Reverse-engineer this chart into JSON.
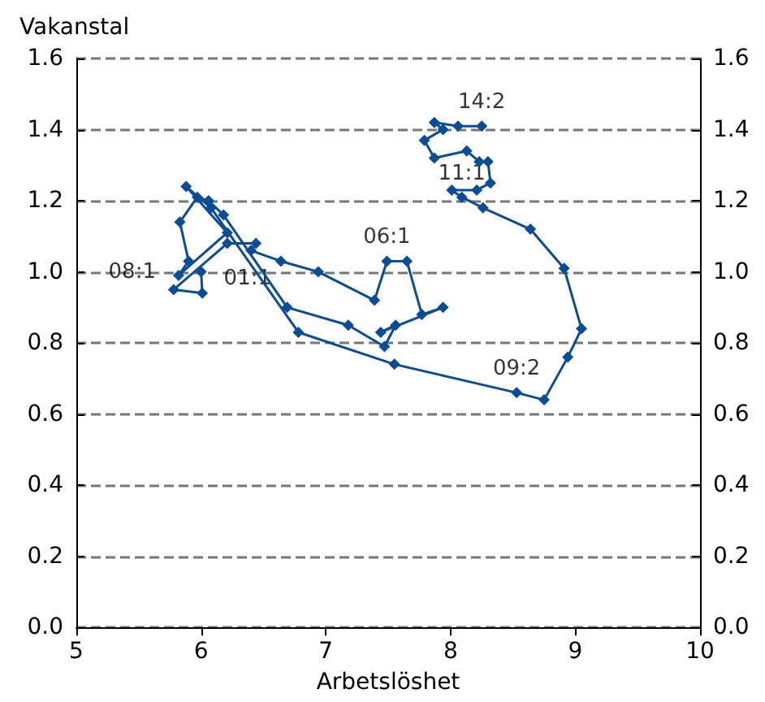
{
  "chart_data": {
    "type": "line",
    "xlabel": "Arbetslöshet",
    "ylabel": "Vakanstal",
    "x": [
      6.0,
      6.01,
      5.78,
      6.21,
      6.44,
      6.4,
      6.64,
      6.94,
      7.39,
      7.49,
      7.65,
      7.77,
      7.94,
      7.44,
      7.56,
      7.47,
      7.18,
      6.69,
      6.18,
      6.06,
      5.97,
      5.83,
      5.9,
      5.82,
      6.21,
      5.88,
      6.08,
      6.78,
      7.55,
      8.53,
      8.75,
      8.94,
      9.05,
      8.91,
      8.64,
      8.26,
      8.09,
      8.01,
      8.21,
      8.32,
      8.3,
      8.23,
      8.13,
      7.87,
      7.79,
      7.94,
      7.87,
      8.06,
      8.25
    ],
    "series": [
      {
        "color": "#0b4c96",
        "values": [
          1.0,
          0.94,
          0.95,
          1.08,
          1.08,
          1.06,
          1.03,
          1.0,
          0.92,
          1.03,
          1.03,
          0.88,
          0.9,
          0.83,
          0.85,
          0.79,
          0.85,
          0.9,
          1.16,
          1.2,
          1.21,
          1.14,
          1.03,
          0.99,
          1.11,
          1.24,
          1.18,
          0.83,
          0.74,
          0.66,
          0.64,
          0.76,
          0.84,
          1.01,
          1.12,
          1.18,
          1.21,
          1.23,
          1.23,
          1.25,
          1.31,
          1.31,
          1.34,
          1.32,
          1.37,
          1.4,
          1.42,
          1.41,
          1.41
        ]
      }
    ],
    "marker": "diamond",
    "line_style": "solid",
    "grid": "y",
    "xlim": [
      5,
      10
    ],
    "xticks": [
      5,
      6,
      7,
      8,
      9,
      10
    ],
    "ylim": [
      0,
      1.6
    ],
    "yticks": [
      {
        "value": 0,
        "label": "0.0"
      },
      {
        "value": 0.2,
        "label": "0.2"
      },
      {
        "value": 0.4,
        "label": "0.4"
      },
      {
        "value": 0.6,
        "label": "0.6"
      },
      {
        "value": 0.8,
        "label": "0.8"
      },
      {
        "value": 1.0,
        "label": "1.0"
      },
      {
        "value": 1.2,
        "label": "1.2"
      },
      {
        "value": 1.4,
        "label": "1.4"
      },
      {
        "value": 1.6,
        "label": "1.6"
      }
    ],
    "y2lim": [
      0,
      1.6
    ],
    "y2ticks": [
      {
        "value": 0,
        "label": "0.0"
      },
      {
        "value": 0.2,
        "label": "0.2"
      },
      {
        "value": 0.4,
        "label": "0.4"
      },
      {
        "value": 0.6,
        "label": "0.6"
      },
      {
        "value": 0.8,
        "label": "0.8"
      },
      {
        "value": 1.0,
        "label": "1.0"
      },
      {
        "value": 1.2,
        "label": "1.2"
      },
      {
        "value": 1.4,
        "label": "1.4"
      },
      {
        "value": 1.6,
        "label": "1.6"
      }
    ],
    "annotations": [
      {
        "text": "01:1",
        "x": 6.0,
        "y": 1.0
      },
      {
        "text": "06:1",
        "x": 7.49,
        "y": 1.03
      },
      {
        "text": "08:1",
        "x": 5.82,
        "y": 0.99
      },
      {
        "text": "09:2",
        "x": 8.53,
        "y": 0.66
      },
      {
        "text": "11:1",
        "x": 8.09,
        "y": 1.21
      },
      {
        "text": "14:2",
        "x": 8.25,
        "y": 1.41
      }
    ]
  }
}
